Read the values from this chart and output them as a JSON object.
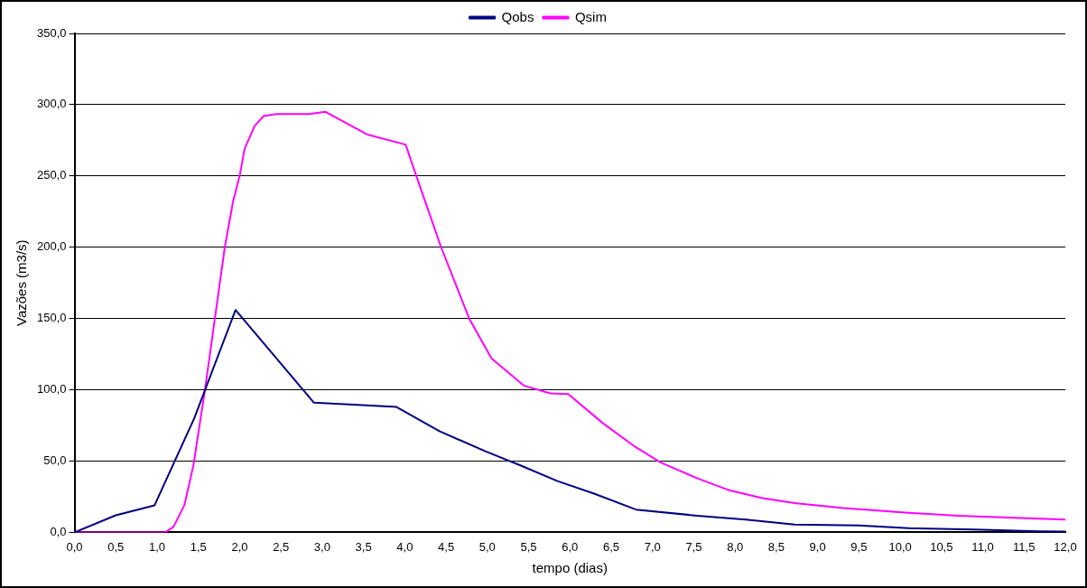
{
  "chart_data": {
    "type": "line",
    "xlabel": "tempo (dias)",
    "ylabel": "Vazões (m3/s)",
    "legend": "top",
    "grid": "y",
    "marker": "none",
    "line_style": "solid",
    "xlim": [
      0,
      12
    ],
    "ylim": [
      0,
      350
    ],
    "xticks": [
      {
        "value": 0,
        "label": "0,0"
      },
      {
        "value": 0.5,
        "label": "0,5"
      },
      {
        "value": 1,
        "label": "1,0"
      },
      {
        "value": 1.5,
        "label": "1,5"
      },
      {
        "value": 2,
        "label": "2,0"
      },
      {
        "value": 2.5,
        "label": "2,5"
      },
      {
        "value": 3,
        "label": "3,0"
      },
      {
        "value": 3.5,
        "label": "3,5"
      },
      {
        "value": 4,
        "label": "4,0"
      },
      {
        "value": 4.5,
        "label": "4,5"
      },
      {
        "value": 5,
        "label": "5,0"
      },
      {
        "value": 5.5,
        "label": "5,5"
      },
      {
        "value": 6,
        "label": "6,0"
      },
      {
        "value": 6.5,
        "label": "6,5"
      },
      {
        "value": 7,
        "label": "7,0"
      },
      {
        "value": 7.5,
        "label": "7,5"
      },
      {
        "value": 8,
        "label": "8,0"
      },
      {
        "value": 8.5,
        "label": "8,5"
      },
      {
        "value": 9,
        "label": "9,0"
      },
      {
        "value": 9.5,
        "label": "9,5"
      },
      {
        "value": 10,
        "label": "10,0"
      },
      {
        "value": 10.5,
        "label": "10,5"
      },
      {
        "value": 11,
        "label": "11,0"
      },
      {
        "value": 11.5,
        "label": "11,5"
      },
      {
        "value": 12,
        "label": "12,0"
      }
    ],
    "yticks": [
      {
        "value": 0,
        "label": "0,0"
      },
      {
        "value": 50,
        "label": "50,0"
      },
      {
        "value": 100,
        "label": "100,0"
      },
      {
        "value": 150,
        "label": "150,0"
      },
      {
        "value": 200,
        "label": "200,0"
      },
      {
        "value": 250,
        "label": "250,0"
      },
      {
        "value": 300,
        "label": "300,0"
      },
      {
        "value": 350,
        "label": "350,0"
      }
    ],
    "series": [
      {
        "name": "Qobs",
        "color": "#000080",
        "x": [
          0,
          0.5,
          0.97,
          1.45,
          1.95,
          2.9,
          3.9,
          4.42,
          4.97,
          5.4,
          5.85,
          6.3,
          6.8,
          7.54,
          8.13,
          8.72,
          9.5,
          10.1,
          10.9,
          11.68,
          12
        ],
        "values": [
          0,
          12,
          19,
          80,
          156,
          91,
          88,
          71,
          57,
          47,
          36,
          27,
          16,
          11.7,
          9,
          5.5,
          4.8,
          3,
          2,
          0.7,
          0.5
        ]
      },
      {
        "name": "Qsim",
        "color": "#ff00ff",
        "x": [
          0,
          1.1,
          1.2,
          1.33,
          1.44,
          1.58,
          1.7,
          1.82,
          1.92,
          2.0,
          2.06,
          2.18,
          2.29,
          2.45,
          2.84,
          3.04,
          3.55,
          4.01,
          4.14,
          4.44,
          4.78,
          5.05,
          5.44,
          5.76,
          5.98,
          6.39,
          6.79,
          7.1,
          7.54,
          7.93,
          8.33,
          8.72,
          9.31,
          10.1,
          10.7,
          11.68,
          12
        ],
        "values": [
          0,
          0,
          4,
          19,
          47,
          100,
          150,
          200,
          232,
          250,
          269,
          285,
          292,
          293.5,
          293.5,
          295,
          279,
          272,
          250,
          200,
          150,
          122,
          103,
          97.5,
          97,
          77,
          60,
          49,
          38,
          29.5,
          24,
          20.5,
          17,
          13.7,
          11.7,
          9.6,
          9
        ]
      }
    ]
  }
}
